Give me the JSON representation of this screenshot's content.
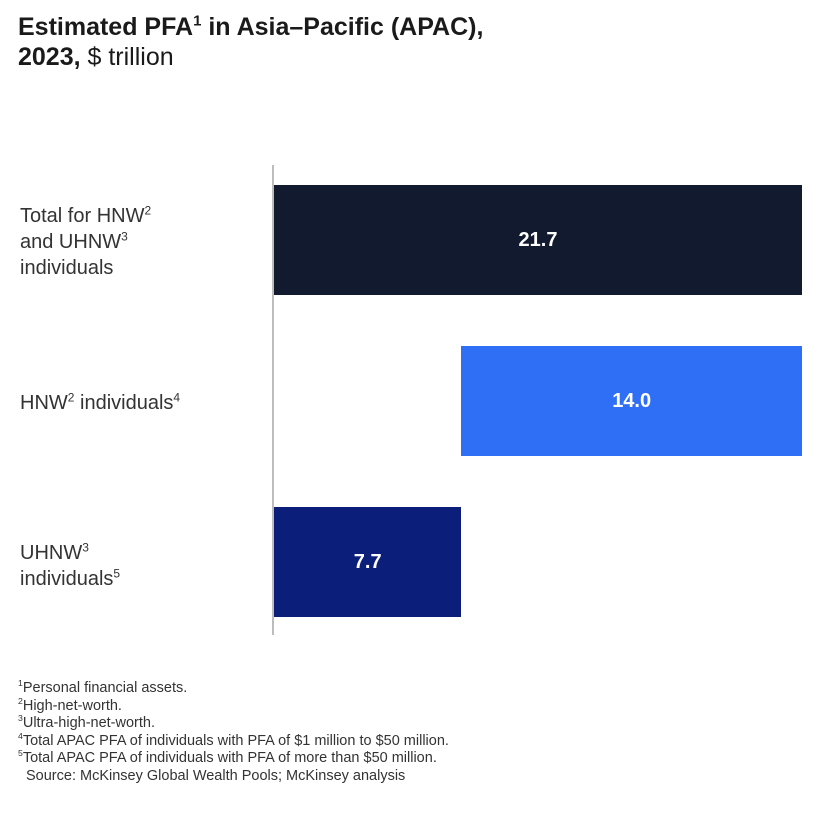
{
  "title": {
    "part1": "Estimated PFA",
    "sup1": "1",
    "part2": " in Asia–Pacific (APAC),",
    "part3": "2023,",
    "part4": " $ trillion"
  },
  "chart_data": {
    "type": "bar",
    "orientation": "horizontal-waterfall",
    "categories": [
      "Total for HNW and UHNW individuals",
      "HNW individuals",
      "UHNW individuals"
    ],
    "values": [
      21.7,
      14.0,
      7.7
    ],
    "value_labels": [
      "21.7",
      "14.0",
      "7.7"
    ],
    "title": "Estimated PFA in Asia–Pacific (APAC), 2023, $ trillion",
    "xlim": [
      0,
      21.7
    ],
    "colors": [
      "#111a2e",
      "#2f6ff5",
      "#0b1f7a"
    ]
  },
  "labels": {
    "cat0_a": "Total for HNW",
    "cat0_a_sup": "2",
    "cat0_b": "and UHNW",
    "cat0_b_sup": "3",
    "cat0_c": "individuals",
    "cat1_a": "HNW",
    "cat1_a_sup": "2",
    "cat1_b": " individuals",
    "cat1_b_sup": "4",
    "cat2_a": "UHNW",
    "cat2_a_sup": "3",
    "cat2_b": "individuals",
    "cat2_b_sup": "5"
  },
  "footnotes": {
    "f1_sup": "1",
    "f1": "Personal financial assets.",
    "f2_sup": "2",
    "f2": "High-net-worth.",
    "f3_sup": "3",
    "f3": "Ultra-high-net-worth.",
    "f4_sup": "4",
    "f4": "Total APAC PFA of individuals with PFA of $1 million to $50 million.",
    "f5_sup": "5",
    "f5": "Total APAC PFA of individuals with PFA of more than $50 million.",
    "source": "Source: McKinsey Global Wealth Pools; McKinsey analysis"
  }
}
